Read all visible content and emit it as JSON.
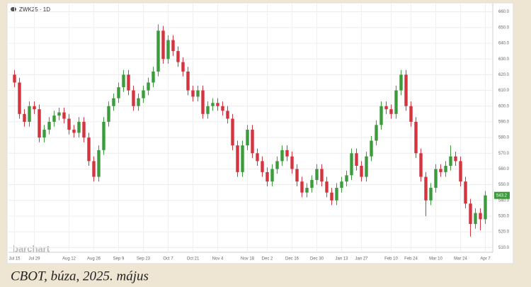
{
  "chart_data": {
    "type": "candlestick",
    "symbol": "ZWK25 · 1D",
    "watermark": "barchart",
    "caption": "CBOT, búza, 2025. május",
    "up_color": "#3c9b3c",
    "down_color": "#d3343e",
    "grid": true,
    "ylim": [
      507,
      663
    ],
    "yticks": [
      {
        "value": 510,
        "label": "510.0"
      },
      {
        "value": 520,
        "label": "520.0"
      },
      {
        "value": 530,
        "label": "530.0"
      },
      {
        "value": 540,
        "label": "540.0"
      },
      {
        "value": 550,
        "label": "550.0"
      },
      {
        "value": 560,
        "label": "560.0"
      },
      {
        "value": 570,
        "label": "570.0"
      },
      {
        "value": 580,
        "label": "580.0"
      },
      {
        "value": 590,
        "label": "590.0"
      },
      {
        "value": 600,
        "label": "600.0"
      },
      {
        "value": 610,
        "label": "610.0"
      },
      {
        "value": 620,
        "label": "620.0"
      },
      {
        "value": 630,
        "label": "630.0"
      },
      {
        "value": 640,
        "label": "640.0"
      },
      {
        "value": 650,
        "label": "650.0"
      },
      {
        "value": 660,
        "label": "660.0"
      }
    ],
    "xlim": [
      -0.5,
      96.5
    ],
    "xticks": [
      {
        "value": 0,
        "label": "Jul 15"
      },
      {
        "value": 4,
        "label": "Jul 29"
      },
      {
        "value": 11,
        "label": "Aug 12"
      },
      {
        "value": 16,
        "label": "Aug 26"
      },
      {
        "value": 21,
        "label": "Sep 9"
      },
      {
        "value": 26,
        "label": "Sep 23"
      },
      {
        "value": 31,
        "label": "Oct 7"
      },
      {
        "value": 36,
        "label": "Oct 21"
      },
      {
        "value": 41,
        "label": "Nov 4"
      },
      {
        "value": 47,
        "label": "Nov 18"
      },
      {
        "value": 51,
        "label": "Dec 2"
      },
      {
        "value": 56,
        "label": "Dec 16"
      },
      {
        "value": 61,
        "label": "Dec 30"
      },
      {
        "value": 66,
        "label": "Jan 13"
      },
      {
        "value": 70,
        "label": "Jan 27"
      },
      {
        "value": 76,
        "label": "Feb 10"
      },
      {
        "value": 80,
        "label": "Feb 24"
      },
      {
        "value": 85,
        "label": "Mar 10"
      },
      {
        "value": 90,
        "label": "Mar 24"
      },
      {
        "value": 95,
        "label": "Apr 7"
      }
    ],
    "candles": [
      [
        620,
        623,
        612,
        615
      ],
      [
        615,
        618,
        592,
        595
      ],
      [
        595,
        598,
        587,
        590
      ],
      [
        590,
        603,
        587,
        600
      ],
      [
        600,
        603,
        595,
        598
      ],
      [
        598,
        601,
        577,
        580
      ],
      [
        580,
        588,
        577,
        585
      ],
      [
        585,
        593,
        582,
        590
      ],
      [
        590,
        597,
        587,
        594
      ],
      [
        594,
        599,
        591,
        596
      ],
      [
        596,
        599,
        589,
        592
      ],
      [
        592,
        595,
        582,
        585
      ],
      [
        585,
        588,
        580,
        583
      ],
      [
        583,
        593,
        580,
        590
      ],
      [
        590,
        593,
        577,
        580
      ],
      [
        580,
        583,
        562,
        565
      ],
      [
        565,
        568,
        552,
        555
      ],
      [
        555,
        575,
        552,
        572
      ],
      [
        572,
        593,
        569,
        590
      ],
      [
        590,
        603,
        587,
        600
      ],
      [
        600,
        608,
        597,
        605
      ],
      [
        605,
        615,
        602,
        612
      ],
      [
        612,
        623,
        609,
        620
      ],
      [
        620,
        623,
        607,
        610
      ],
      [
        610,
        613,
        597,
        600
      ],
      [
        600,
        608,
        597,
        605
      ],
      [
        605,
        613,
        602,
        610
      ],
      [
        610,
        618,
        607,
        615
      ],
      [
        615,
        625,
        612,
        622
      ],
      [
        622,
        652,
        619,
        648
      ],
      [
        648,
        651,
        627,
        630
      ],
      [
        630,
        645,
        627,
        642
      ],
      [
        642,
        645,
        632,
        635
      ],
      [
        635,
        638,
        625,
        628
      ],
      [
        628,
        631,
        619,
        622
      ],
      [
        622,
        625,
        607,
        610
      ],
      [
        610,
        613,
        603,
        606
      ],
      [
        606,
        613,
        603,
        610
      ],
      [
        610,
        613,
        592,
        595
      ],
      [
        595,
        603,
        592,
        600
      ],
      [
        600,
        605,
        597,
        602
      ],
      [
        602,
        605,
        597,
        600
      ],
      [
        600,
        603,
        594,
        597
      ],
      [
        597,
        600,
        589,
        592
      ],
      [
        592,
        595,
        572,
        575
      ],
      [
        575,
        578,
        555,
        558
      ],
      [
        558,
        578,
        555,
        575
      ],
      [
        575,
        588,
        572,
        585
      ],
      [
        585,
        588,
        567,
        570
      ],
      [
        570,
        573,
        562,
        565
      ],
      [
        565,
        568,
        555,
        558
      ],
      [
        558,
        561,
        549,
        552
      ],
      [
        552,
        563,
        549,
        560
      ],
      [
        560,
        568,
        557,
        565
      ],
      [
        565,
        575,
        562,
        572
      ],
      [
        572,
        575,
        565,
        568
      ],
      [
        568,
        571,
        557,
        560
      ],
      [
        560,
        563,
        549,
        552
      ],
      [
        552,
        555,
        542,
        545
      ],
      [
        545,
        551,
        542,
        548
      ],
      [
        548,
        556,
        545,
        553
      ],
      [
        553,
        563,
        550,
        560
      ],
      [
        560,
        563,
        549,
        552
      ],
      [
        552,
        555,
        542,
        545
      ],
      [
        545,
        548,
        537,
        540
      ],
      [
        540,
        551,
        537,
        548
      ],
      [
        548,
        555,
        545,
        552
      ],
      [
        552,
        559,
        549,
        556
      ],
      [
        556,
        573,
        553,
        570
      ],
      [
        570,
        573,
        559,
        562
      ],
      [
        562,
        565,
        552,
        555
      ],
      [
        555,
        571,
        552,
        568
      ],
      [
        568,
        581,
        565,
        578
      ],
      [
        578,
        591,
        575,
        588
      ],
      [
        588,
        603,
        585,
        600
      ],
      [
        600,
        603,
        595,
        598
      ],
      [
        598,
        601,
        592,
        595
      ],
      [
        595,
        613,
        592,
        610
      ],
      [
        610,
        623,
        607,
        620
      ],
      [
        620,
        623,
        597,
        600
      ],
      [
        600,
        603,
        587,
        590
      ],
      [
        590,
        593,
        567,
        570
      ],
      [
        570,
        573,
        552,
        555
      ],
      [
        555,
        558,
        530,
        540
      ],
      [
        540,
        551,
        537,
        548
      ],
      [
        548,
        563,
        545,
        560
      ],
      [
        560,
        563,
        555,
        558
      ],
      [
        558,
        565,
        555,
        562
      ],
      [
        562,
        575,
        559,
        568
      ],
      [
        568,
        571,
        562,
        565
      ],
      [
        565,
        568,
        549,
        552
      ],
      [
        552,
        555,
        535,
        538
      ],
      [
        538,
        541,
        517,
        525
      ],
      [
        525,
        535,
        522,
        532
      ],
      [
        532,
        535,
        521,
        528
      ],
      [
        528,
        546,
        525,
        543.2
      ]
    ]
  }
}
